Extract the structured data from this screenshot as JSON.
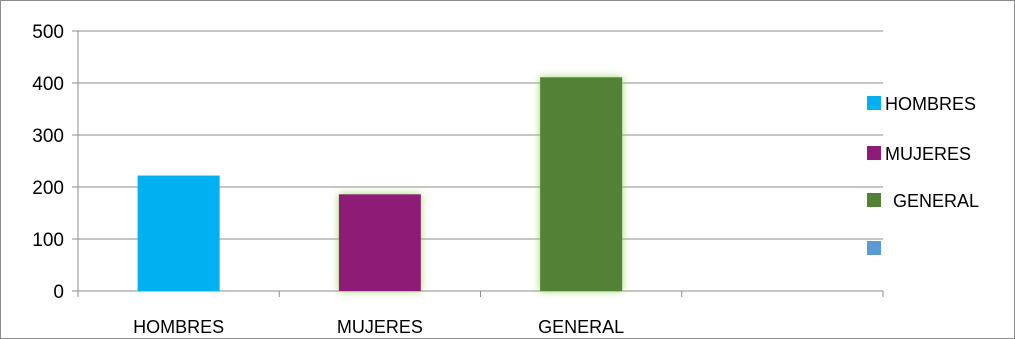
{
  "chart_data": {
    "type": "bar",
    "categories": [
      "HOMBRES",
      "MUJERES",
      "GENERAL"
    ],
    "values": [
      222,
      186,
      411
    ],
    "colors": [
      "#00b0f0",
      "#8e1b77",
      "#538135"
    ],
    "ylim": [
      0,
      500
    ],
    "yticks": [
      0,
      100,
      200,
      300,
      400,
      500
    ],
    "ytick_labels": [
      "0",
      "100",
      "200",
      "300",
      "400",
      "500"
    ],
    "grid": true,
    "legend": {
      "placement": "right",
      "entries": [
        {
          "label": "HOMBRES",
          "color": "#00b0f0"
        },
        {
          "label": "MUJERES",
          "color": "#8e1b77"
        },
        {
          "label": "GENERAL",
          "color": "#538135"
        },
        {
          "label": "",
          "color": "#5b9bd5"
        }
      ]
    }
  }
}
